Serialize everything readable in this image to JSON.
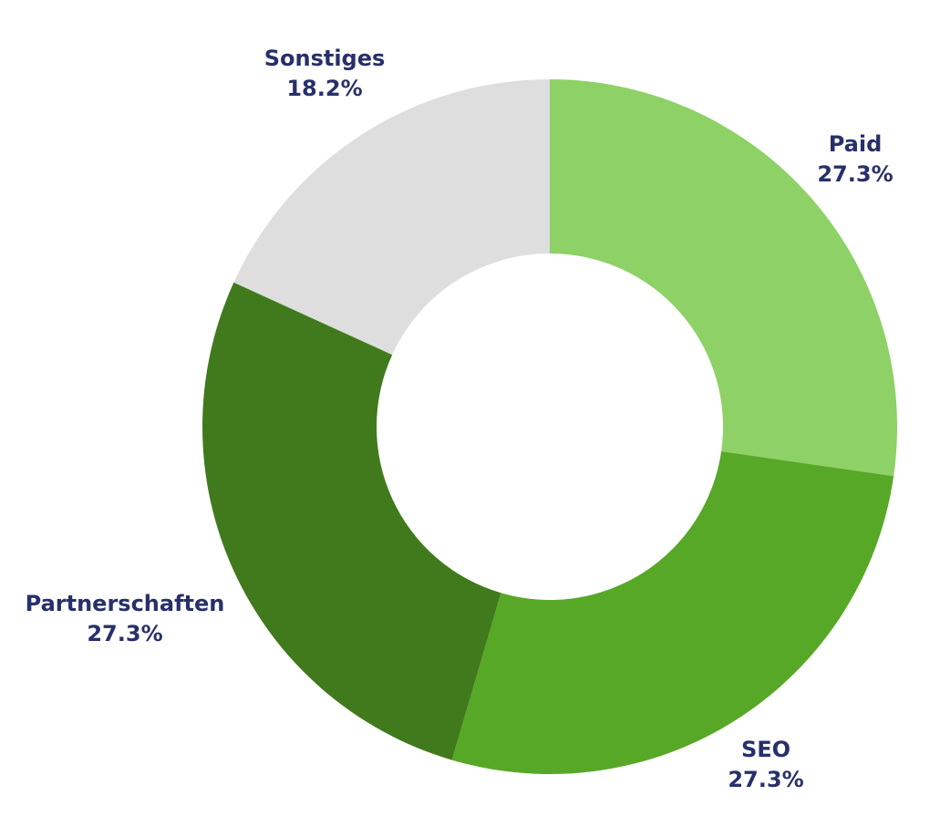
{
  "chart_data": {
    "type": "pie",
    "donut": true,
    "title": "",
    "label_color": "#27306a",
    "slices": [
      {
        "label": "Paid",
        "value": 27.3,
        "value_label": "27.3%",
        "color": "#8ed166"
      },
      {
        "label": "SEO",
        "value": 27.3,
        "value_label": "27.3%",
        "color": "#57a827"
      },
      {
        "label": "Partnerschaften",
        "value": 27.3,
        "value_label": "27.3%",
        "color": "#417a1d"
      },
      {
        "label": "Sonstiges",
        "value": 18.2,
        "value_label": "18.2%",
        "color": "#dedede"
      }
    ]
  }
}
